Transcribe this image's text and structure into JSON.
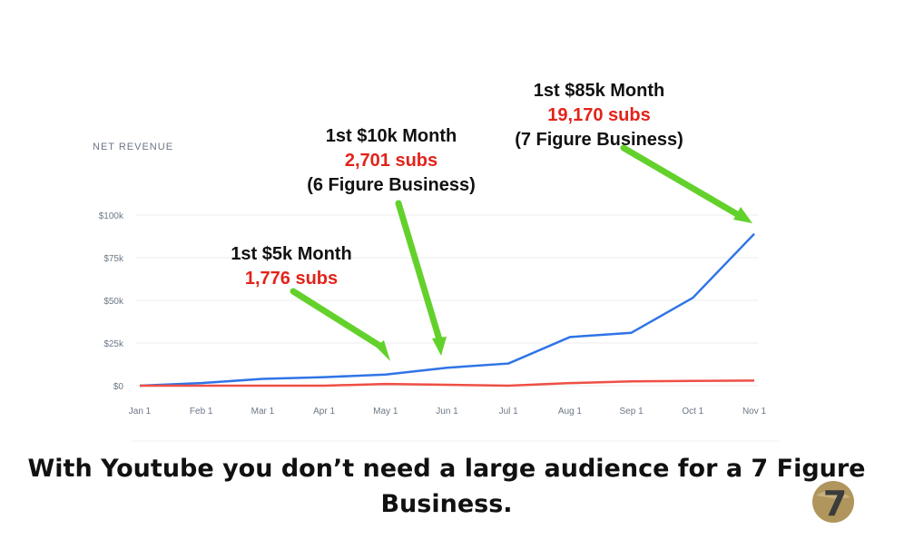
{
  "chart_data": {
    "type": "line",
    "title": "NET REVENUE",
    "xlabel": "",
    "ylabel": "",
    "categories": [
      "Jan 1",
      "Feb 1",
      "Mar 1",
      "Apr 1",
      "May 1",
      "Jun 1",
      "Jul 1",
      "Aug 1",
      "Sep 1",
      "Oct 1",
      "Nov 1"
    ],
    "y_tick_labels": [
      "$0",
      "$25k",
      "$50k",
      "$75k",
      "$100k"
    ],
    "y_ticks": [
      0,
      25000,
      50000,
      75000,
      100000
    ],
    "ylim": [
      0,
      100000
    ],
    "grid": true,
    "series": [
      {
        "color": "#2f74e6",
        "values": [
          0,
          1500,
          4000,
          5000,
          6500,
          10500,
          13000,
          28500,
          31000,
          51500,
          89000
        ]
      },
      {
        "color": "#ef4f45",
        "values": [
          0,
          0,
          0,
          0,
          1000,
          500,
          0,
          1500,
          2500,
          2800,
          3000
        ]
      }
    ],
    "annotations": [
      {
        "line1": "1st $5k Month",
        "subs": "1,776 subs",
        "line3": ""
      },
      {
        "line1": "1st $10k Month",
        "subs": "2,701 subs",
        "line3": "(6 Figure Business)"
      },
      {
        "line1": "1st $85k Month",
        "subs": "19,170 subs",
        "line3": "(7 Figure Business)"
      }
    ]
  },
  "caption": "With Youtube you don’t need a large audience for a 7 Figure Business.",
  "logo": {
    "text": "7",
    "color": "#b0955c"
  },
  "colors": {
    "arrow": "#63d12b",
    "subs": "#e2231a",
    "grid": "#eeeeee"
  }
}
